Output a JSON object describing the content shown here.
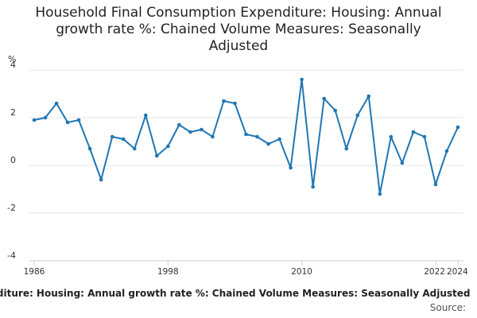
{
  "title_lines": [
    "Household Final Consumption Expenditure: Housing: Annual",
    "growth rate %: Chained Volume Measures: Seasonally",
    "Adjusted"
  ],
  "footer": {
    "series_label": "Household Final Consumption Expenditure: Housing: Annual growth rate %: Chained Volume Measures: Seasonally Adjusted",
    "source": "Source:"
  },
  "colors": {
    "line": "#1f77b4",
    "grid": "#e6e6e6",
    "axis": "#cccccc"
  },
  "chart_data": {
    "type": "line",
    "title": "Household Final Consumption Expenditure: Housing: Annual growth rate %: Chained Volume Measures: Seasonally Adjusted",
    "ylabel": "%",
    "xlabel": "",
    "ylim": [
      -4,
      4
    ],
    "yticks": [
      -4,
      -2,
      0,
      2,
      4
    ],
    "xlim": [
      1986,
      2024
    ],
    "xticks": [
      1986,
      1998,
      2010,
      2022,
      2024
    ],
    "grid": true,
    "series": [
      {
        "name": "Household Final Consumption Expenditure: Housing: Annual growth rate %: Chained Volume Measures: Seasonally Adjusted",
        "x": [
          1986,
          1987,
          1988,
          1989,
          1990,
          1991,
          1992,
          1993,
          1994,
          1995,
          1996,
          1997,
          1998,
          1999,
          2000,
          2001,
          2002,
          2003,
          2004,
          2005,
          2006,
          2007,
          2008,
          2009,
          2010,
          2011,
          2012,
          2013,
          2014,
          2015,
          2016,
          2017,
          2018,
          2019,
          2020,
          2021,
          2022,
          2023,
          2024
        ],
        "values": [
          1.9,
          2.0,
          2.6,
          1.8,
          1.9,
          0.7,
          -0.6,
          1.2,
          1.1,
          0.7,
          2.1,
          0.4,
          0.8,
          1.7,
          1.4,
          1.5,
          1.2,
          2.7,
          2.6,
          1.3,
          1.2,
          0.9,
          1.1,
          -0.1,
          3.6,
          -0.9,
          2.8,
          2.3,
          0.7,
          2.1,
          2.9,
          -1.2,
          1.2,
          0.1,
          1.4,
          1.2,
          -0.8,
          0.6,
          1.6
        ]
      }
    ]
  }
}
